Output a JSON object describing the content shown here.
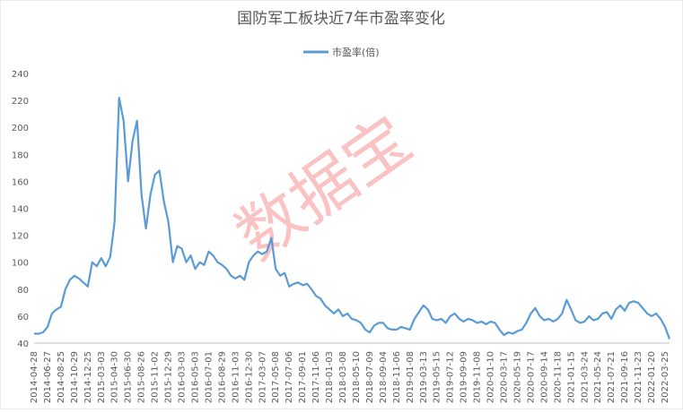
{
  "chart_data": {
    "type": "line",
    "title": "国防军工板块近7年市盈率变化",
    "watermark": "数据宝",
    "categories": [
      "2014-04-28",
      null,
      null,
      "2014-06-27",
      null,
      null,
      "2014-08-25",
      null,
      null,
      "2014-10-29",
      null,
      null,
      "2014-12-25",
      null,
      null,
      "2015-03-03",
      null,
      null,
      "2015-04-30",
      null,
      null,
      "2015-06-30",
      null,
      null,
      "2015-08-26",
      null,
      null,
      "2015-11-02",
      null,
      null,
      "2015-12-29",
      null,
      null,
      "2016-03-03",
      null,
      null,
      "2016-05-03",
      null,
      null,
      "2016-07-01",
      null,
      null,
      "2016-08-29",
      null,
      null,
      "2016-11-03",
      null,
      null,
      "2016-12-30",
      null,
      null,
      "2017-03-07",
      null,
      null,
      "2017-05-08",
      null,
      null,
      "2017-07-06",
      null,
      null,
      "2017-09-01",
      null,
      null,
      "2017-11-06",
      null,
      null,
      "2018-01-03",
      null,
      null,
      "2018-03-08",
      null,
      null,
      "2018-05-10",
      null,
      null,
      "2018-07-09",
      null,
      null,
      "2018-09-04",
      null,
      null,
      "2018-11-06",
      null,
      null,
      "2019-01-08",
      null,
      null,
      "2019-03-13",
      null,
      null,
      "2019-05-15",
      null,
      null,
      "2019-07-12",
      null,
      null,
      "2019-09-09",
      null,
      null,
      "2019-11-08",
      null,
      null,
      "2020-01-10",
      null,
      null,
      "2020-03-17",
      null,
      null,
      "2020-05-19",
      null,
      null,
      "2020-07-17",
      null,
      null,
      "2020-09-14",
      null,
      null,
      "2020-11-18",
      null,
      null,
      "2021-01-15",
      null,
      null,
      "2021-03-24",
      null,
      null,
      "2021-05-24",
      null,
      null,
      "2021-07-21",
      null,
      null,
      "2021-09-16",
      null,
      null,
      "2021-11-23",
      null,
      null,
      "2022-01-20",
      null,
      null,
      "2022-03-25",
      null
    ],
    "series": [
      {
        "name": "市盈率(倍)",
        "color": "#5b9bd5",
        "values": [
          47,
          47,
          48,
          52,
          62,
          65,
          67,
          80,
          87,
          90,
          88,
          85,
          82,
          100,
          97,
          103,
          97,
          104,
          130,
          222,
          205,
          160,
          190,
          205,
          150,
          125,
          150,
          165,
          168,
          145,
          130,
          100,
          112,
          110,
          100,
          105,
          95,
          100,
          98,
          108,
          105,
          100,
          98,
          95,
          90,
          88,
          90,
          87,
          100,
          105,
          108,
          106,
          108,
          118,
          95,
          90,
          92,
          82,
          84,
          85,
          83,
          84,
          80,
          75,
          73,
          68,
          65,
          62,
          65,
          60,
          62,
          58,
          57,
          55,
          50,
          48,
          53,
          55,
          55,
          51,
          50,
          50,
          52,
          51,
          50,
          58,
          63,
          68,
          65,
          58,
          57,
          58,
          55,
          60,
          62,
          58,
          56,
          58,
          57,
          55,
          56,
          54,
          56,
          55,
          50,
          46,
          48,
          47,
          49,
          50,
          55,
          62,
          66,
          60,
          57,
          58,
          56,
          58,
          62,
          72,
          65,
          57,
          55,
          56,
          60,
          57,
          58,
          62,
          63,
          58,
          65,
          68,
          64,
          70,
          71,
          70,
          66,
          62,
          60,
          62,
          58,
          52,
          43
        ]
      }
    ],
    "ylim": [
      40,
      240
    ],
    "yticks": [
      40,
      60,
      80,
      100,
      120,
      140,
      160,
      180,
      200,
      220,
      240
    ]
  }
}
